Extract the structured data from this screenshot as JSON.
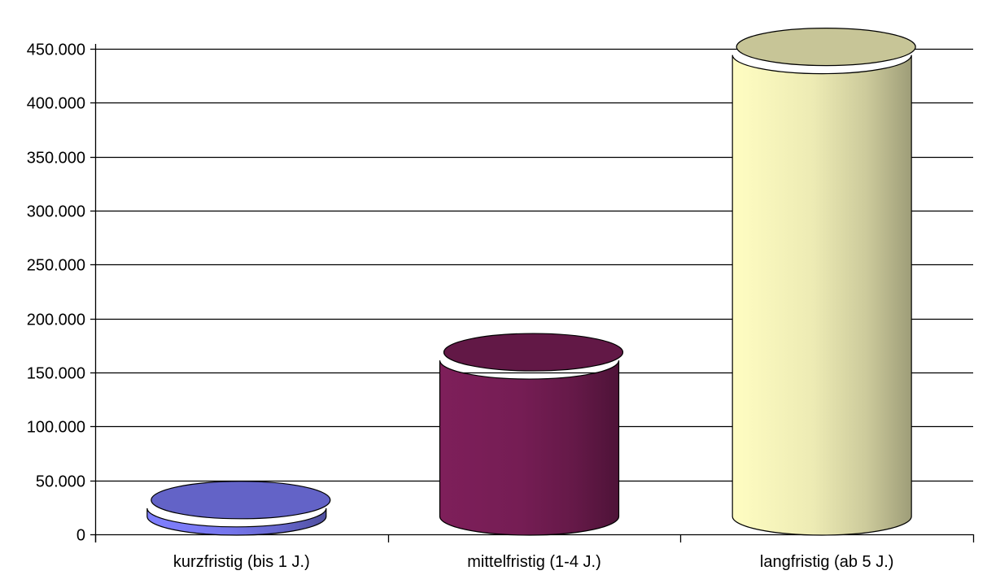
{
  "chart_data": {
    "type": "bar",
    "style": "3d-cylinder",
    "categories": [
      "kurzfristig (bis 1 J.)",
      "mittelfristig (1-4 J.)",
      "langfristig (ab 5 J.)"
    ],
    "values": [
      25000,
      162000,
      445000
    ],
    "colors": [
      "#7f7fff",
      "#7e1f5a",
      "#fffdc2"
    ],
    "ylim": [
      0,
      450000
    ],
    "yticks": [
      0,
      50000,
      100000,
      150000,
      200000,
      250000,
      300000,
      350000,
      400000,
      450000
    ],
    "ytick_labels": [
      "0",
      "50.000",
      "100.000",
      "150.000",
      "200.000",
      "250.000",
      "300.000",
      "350.000",
      "400.000",
      "450.000"
    ],
    "title": "",
    "xlabel": "",
    "ylabel": "",
    "grid": true,
    "legend": "none"
  }
}
